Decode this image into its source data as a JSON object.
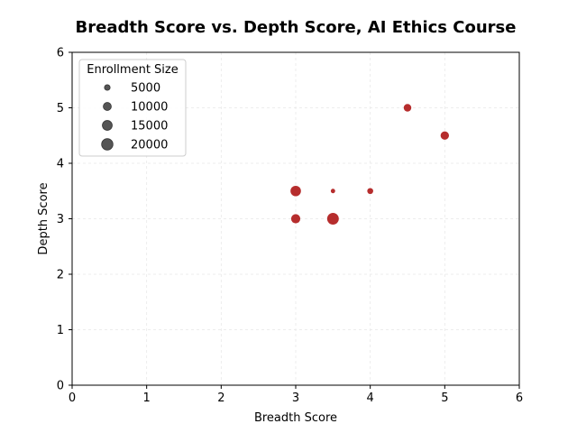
{
  "chart_data": {
    "type": "scatter",
    "title": "Breadth Score vs. Depth Score, AI Ethics Course",
    "xlabel": "Breadth Score",
    "ylabel": "Depth Score",
    "xlim": [
      0,
      6
    ],
    "ylim": [
      0,
      6
    ],
    "x_ticks": [
      "0",
      "1",
      "2",
      "3",
      "4",
      "5",
      "6"
    ],
    "y_ticks": [
      "0",
      "1",
      "2",
      "3",
      "4",
      "5",
      "6"
    ],
    "grid": true,
    "legend_title": "Enrollment Size",
    "legend_position": "top-left",
    "legend_entries": [
      {
        "label": "5000",
        "size": 5000
      },
      {
        "label": "10000",
        "size": 10000
      },
      {
        "label": "15000",
        "size": 15000
      },
      {
        "label": "20000",
        "size": 20000
      }
    ],
    "point_color": "#b22222",
    "legend_marker_color": "#555555",
    "points": [
      {
        "x": 4.5,
        "y": 5.0,
        "size": 9000
      },
      {
        "x": 5.0,
        "y": 4.5,
        "size": 11000
      },
      {
        "x": 3.0,
        "y": 3.5,
        "size": 17000
      },
      {
        "x": 3.5,
        "y": 3.5,
        "size": 3000
      },
      {
        "x": 4.0,
        "y": 3.5,
        "size": 5500
      },
      {
        "x": 3.0,
        "y": 3.0,
        "size": 13000
      },
      {
        "x": 3.5,
        "y": 3.0,
        "size": 21000
      }
    ]
  }
}
